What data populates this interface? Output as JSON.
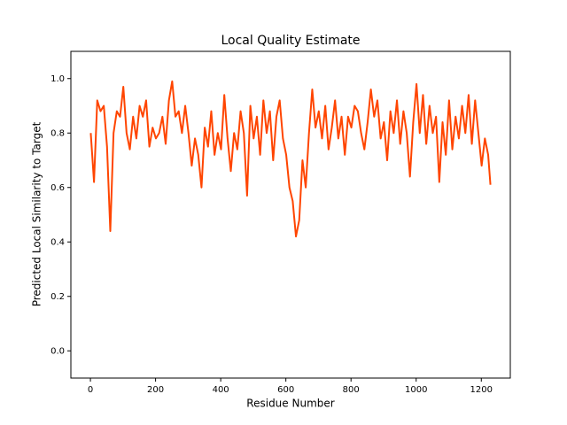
{
  "chart_data": {
    "type": "line",
    "title": "Local Quality Estimate",
    "x_label": "Residue Number",
    "y_label": "Predicted Local Similarity to Target",
    "x": [
      1,
      11,
      21,
      31,
      41,
      51,
      61,
      71,
      81,
      91,
      101,
      111,
      121,
      131,
      141,
      151,
      161,
      171,
      181,
      191,
      201,
      211,
      221,
      231,
      241,
      251,
      261,
      271,
      281,
      291,
      301,
      311,
      321,
      331,
      341,
      351,
      361,
      371,
      381,
      391,
      401,
      411,
      421,
      431,
      441,
      451,
      461,
      471,
      481,
      491,
      501,
      511,
      521,
      531,
      541,
      551,
      561,
      571,
      581,
      591,
      601,
      611,
      621,
      631,
      641,
      651,
      661,
      671,
      681,
      691,
      701,
      711,
      721,
      731,
      741,
      751,
      761,
      771,
      781,
      791,
      801,
      811,
      821,
      831,
      841,
      851,
      861,
      871,
      881,
      891,
      901,
      911,
      921,
      931,
      941,
      951,
      961,
      971,
      981,
      991,
      1001,
      1011,
      1021,
      1031,
      1041,
      1051,
      1061,
      1071,
      1081,
      1091,
      1101,
      1111,
      1121,
      1131,
      1141,
      1151,
      1161,
      1171,
      1181,
      1191,
      1201,
      1211,
      1221,
      1228
    ],
    "series": [
      {
        "color": "#ff4500",
        "values": [
          0.8,
          0.62,
          0.92,
          0.88,
          0.9,
          0.75,
          0.44,
          0.8,
          0.88,
          0.86,
          0.97,
          0.8,
          0.74,
          0.86,
          0.78,
          0.9,
          0.86,
          0.92,
          0.75,
          0.82,
          0.78,
          0.8,
          0.86,
          0.76,
          0.92,
          0.99,
          0.86,
          0.88,
          0.8,
          0.9,
          0.8,
          0.68,
          0.78,
          0.72,
          0.6,
          0.82,
          0.75,
          0.88,
          0.72,
          0.8,
          0.74,
          0.94,
          0.78,
          0.66,
          0.8,
          0.74,
          0.88,
          0.8,
          0.57,
          0.9,
          0.78,
          0.86,
          0.72,
          0.92,
          0.8,
          0.88,
          0.7,
          0.86,
          0.92,
          0.78,
          0.72,
          0.6,
          0.55,
          0.42,
          0.48,
          0.7,
          0.6,
          0.8,
          0.96,
          0.82,
          0.88,
          0.78,
          0.9,
          0.74,
          0.82,
          0.92,
          0.78,
          0.86,
          0.72,
          0.86,
          0.82,
          0.9,
          0.88,
          0.8,
          0.74,
          0.84,
          0.96,
          0.86,
          0.92,
          0.78,
          0.84,
          0.7,
          0.88,
          0.8,
          0.92,
          0.76,
          0.88,
          0.8,
          0.64,
          0.84,
          0.98,
          0.8,
          0.94,
          0.76,
          0.9,
          0.8,
          0.86,
          0.62,
          0.84,
          0.72,
          0.92,
          0.74,
          0.86,
          0.78,
          0.9,
          0.8,
          0.94,
          0.76,
          0.92,
          0.8,
          0.68,
          0.78,
          0.72,
          0.61
        ]
      }
    ],
    "xlim": [
      -60,
      1289
    ],
    "xticks": [
      0,
      200,
      400,
      600,
      800,
      1000,
      1200
    ],
    "ylim": [
      -0.1,
      1.1
    ],
    "yticks": [
      {
        "value": 0,
        "label": "0.0"
      },
      {
        "value": 0.2,
        "label": "0.2"
      },
      {
        "value": 0.4,
        "label": "0.4"
      },
      {
        "value": 0.6,
        "label": "0.6"
      },
      {
        "value": 0.8,
        "label": "0.8"
      },
      {
        "value": 1,
        "label": "1.0"
      }
    ]
  }
}
